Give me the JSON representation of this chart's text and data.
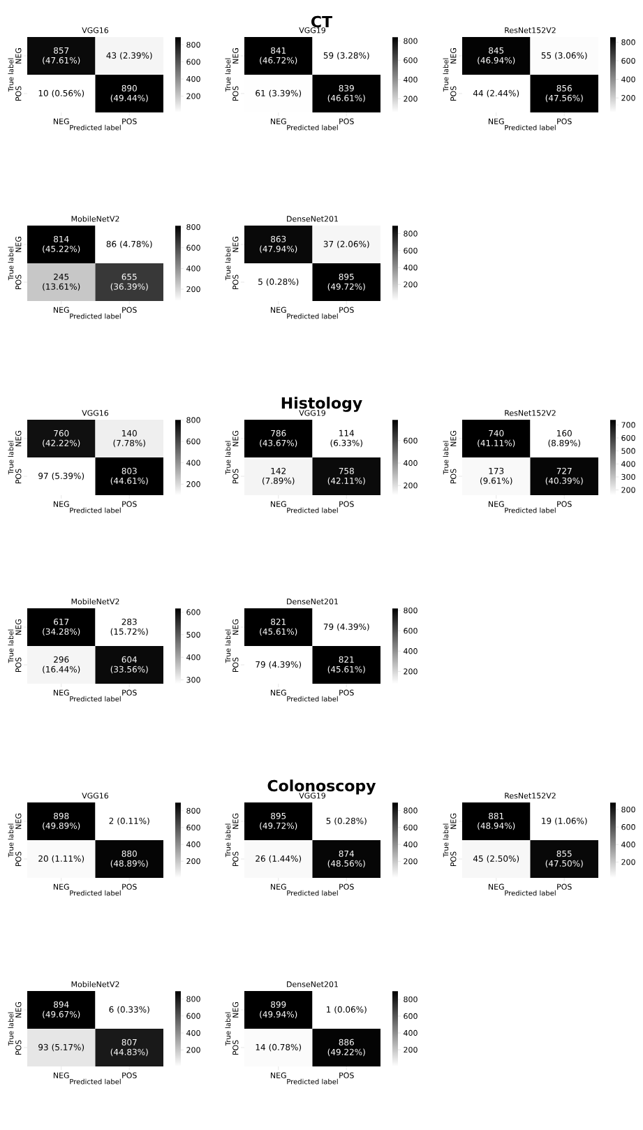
{
  "chart_data": [
    {
      "type": "other",
      "title": "CT"
    },
    {
      "type": "heatmap",
      "title": "VGG16",
      "xlabel": "Predicted label",
      "ylabel": "True label",
      "categories": [
        "NEG",
        "POS"
      ],
      "y_categories": [
        "NEG",
        "POS"
      ],
      "cells": [
        [
          857,
          43
        ],
        [
          10,
          890
        ]
      ],
      "cell_labels": [
        [
          "857 (47.61%)",
          "43 (2.39%)"
        ],
        [
          "10 (0.56%)",
          "890 (49.44%)"
        ]
      ],
      "clim": [
        10,
        890
      ],
      "cticks": [
        200,
        400,
        600,
        800
      ]
    },
    {
      "type": "heatmap",
      "title": "VGG19",
      "xlabel": "Predicted label",
      "ylabel": "True label",
      "categories": [
        "NEG",
        "POS"
      ],
      "y_categories": [
        "NEG",
        "POS"
      ],
      "cells": [
        [
          841,
          59
        ],
        [
          61,
          839
        ]
      ],
      "cell_labels": [
        [
          "841 (46.72%)",
          "59 (3.28%)"
        ],
        [
          "61 (3.39%)",
          "839 (46.61%)"
        ]
      ],
      "clim": [
        59,
        841
      ],
      "cticks": [
        200,
        400,
        600,
        800
      ]
    },
    {
      "type": "heatmap",
      "title": "ResNet152V2",
      "xlabel": "Predicted label",
      "ylabel": "True label",
      "categories": [
        "NEG",
        "POS"
      ],
      "y_categories": [
        "NEG",
        "POS"
      ],
      "cells": [
        [
          845,
          55
        ],
        [
          44,
          856
        ]
      ],
      "cell_labels": [
        [
          "845 (46.94%)",
          "55 (3.06%)"
        ],
        [
          "44 (2.44%)",
          "856 (47.56%)"
        ]
      ],
      "clim": [
        44,
        856
      ],
      "cticks": [
        200,
        400,
        600,
        800
      ]
    },
    {
      "type": "heatmap",
      "title": "MobileNetV2",
      "xlabel": "Predicted label",
      "ylabel": "True label",
      "categories": [
        "NEG",
        "POS"
      ],
      "y_categories": [
        "NEG",
        "POS"
      ],
      "cells": [
        [
          814,
          86
        ],
        [
          245,
          655
        ]
      ],
      "cell_labels": [
        [
          "814 (45.22%)",
          "86 (4.78%)"
        ],
        [
          "245 (13.61%)",
          "655 (36.39%)"
        ]
      ],
      "clim": [
        86,
        814
      ],
      "cticks": [
        200,
        400,
        600,
        800
      ]
    },
    {
      "type": "heatmap",
      "title": "DenseNet201",
      "xlabel": "Predicted label",
      "ylabel": "True label",
      "categories": [
        "NEG",
        "POS"
      ],
      "y_categories": [
        "NEG",
        "POS"
      ],
      "cells": [
        [
          863,
          37
        ],
        [
          5,
          895
        ]
      ],
      "cell_labels": [
        [
          "863 (47.94%)",
          "37 (2.06%)"
        ],
        [
          "5 (0.28%)",
          "895 (49.72%)"
        ]
      ],
      "clim": [
        5,
        895
      ],
      "cticks": [
        200,
        400,
        600,
        800
      ]
    },
    {
      "type": "other",
      "title": "Histology"
    },
    {
      "type": "heatmap",
      "title": "VGG16",
      "xlabel": "Predicted label",
      "ylabel": "True label",
      "categories": [
        "NEG",
        "POS"
      ],
      "y_categories": [
        "NEG",
        "POS"
      ],
      "cells": [
        [
          760,
          140
        ],
        [
          97,
          803
        ]
      ],
      "cell_labels": [
        [
          "760 (42.22%)",
          "140 (7.78%)"
        ],
        [
          "97 (5.39%)",
          "803 (44.61%)"
        ]
      ],
      "clim": [
        97,
        803
      ],
      "cticks": [
        200,
        400,
        600,
        800
      ]
    },
    {
      "type": "heatmap",
      "title": "VGG19",
      "xlabel": "Predicted label",
      "ylabel": "True label",
      "categories": [
        "NEG",
        "POS"
      ],
      "y_categories": [
        "NEG",
        "POS"
      ],
      "cells": [
        [
          786,
          114
        ],
        [
          142,
          758
        ]
      ],
      "cell_labels": [
        [
          "786 (43.67%)",
          "114 (6.33%)"
        ],
        [
          "142 (7.89%)",
          "758 (42.11%)"
        ]
      ],
      "clim": [
        114,
        786
      ],
      "cticks": [
        200,
        400,
        600
      ]
    },
    {
      "type": "heatmap",
      "title": "ResNet152V2",
      "xlabel": "Predicted label",
      "ylabel": "True label",
      "categories": [
        "NEG",
        "POS"
      ],
      "y_categories": [
        "NEG",
        "POS"
      ],
      "cells": [
        [
          740,
          160
        ],
        [
          173,
          727
        ]
      ],
      "cell_labels": [
        [
          "740 (41.11%)",
          "160 (8.89%)"
        ],
        [
          "173 (9.61%)",
          "727 (40.39%)"
        ]
      ],
      "clim": [
        160,
        740
      ],
      "cticks": [
        200,
        300,
        400,
        500,
        600,
        700
      ]
    },
    {
      "type": "heatmap",
      "title": "MobileNetV2",
      "xlabel": "Predicted label",
      "ylabel": "True label",
      "categories": [
        "NEG",
        "POS"
      ],
      "y_categories": [
        "NEG",
        "POS"
      ],
      "cells": [
        [
          617,
          283
        ],
        [
          296,
          604
        ]
      ],
      "cell_labels": [
        [
          "617 (34.28%)",
          "283 (15.72%)"
        ],
        [
          "296 (16.44%)",
          "604 (33.56%)"
        ]
      ],
      "clim": [
        283,
        617
      ],
      "cticks": [
        300,
        400,
        500,
        600
      ]
    },
    {
      "type": "heatmap",
      "title": "DenseNet201",
      "xlabel": "Predicted label",
      "ylabel": "True label",
      "categories": [
        "NEG",
        "POS"
      ],
      "y_categories": [
        "NEG",
        "POS"
      ],
      "cells": [
        [
          821,
          79
        ],
        [
          79,
          821
        ]
      ],
      "cell_labels": [
        [
          "821 (45.61%)",
          "79 (4.39%)"
        ],
        [
          "79 (4.39%)",
          "821 (45.61%)"
        ]
      ],
      "clim": [
        79,
        821
      ],
      "cticks": [
        200,
        400,
        600,
        800
      ]
    },
    {
      "type": "other",
      "title": "Colonoscopy"
    },
    {
      "type": "heatmap",
      "title": "VGG16",
      "xlabel": "Predicted label",
      "ylabel": "True label",
      "categories": [
        "NEG",
        "POS"
      ],
      "y_categories": [
        "NEG",
        "POS"
      ],
      "cells": [
        [
          898,
          2
        ],
        [
          20,
          880
        ]
      ],
      "cell_labels": [
        [
          "898 (49.89%)",
          "2 (0.11%)"
        ],
        [
          "20 (1.11%)",
          "880 (48.89%)"
        ]
      ],
      "clim": [
        2,
        898
      ],
      "cticks": [
        200,
        400,
        600,
        800
      ]
    },
    {
      "type": "heatmap",
      "title": "VGG19",
      "xlabel": "Predicted label",
      "ylabel": "True label",
      "categories": [
        "NEG",
        "POS"
      ],
      "y_categories": [
        "NEG",
        "POS"
      ],
      "cells": [
        [
          895,
          5
        ],
        [
          26,
          874
        ]
      ],
      "cell_labels": [
        [
          "895 (49.72%)",
          "5 (0.28%)"
        ],
        [
          "26 (1.44%)",
          "874 (48.56%)"
        ]
      ],
      "clim": [
        5,
        895
      ],
      "cticks": [
        200,
        400,
        600,
        800
      ]
    },
    {
      "type": "heatmap",
      "title": "ResNet152V2",
      "xlabel": "Predicted label",
      "ylabel": "True label",
      "categories": [
        "NEG",
        "POS"
      ],
      "y_categories": [
        "NEG",
        "POS"
      ],
      "cells": [
        [
          881,
          19
        ],
        [
          45,
          855
        ]
      ],
      "cell_labels": [
        [
          "881 (48.94%)",
          "19 (1.06%)"
        ],
        [
          "45 (2.50%)",
          "855 (47.50%)"
        ]
      ],
      "clim": [
        19,
        881
      ],
      "cticks": [
        200,
        400,
        600,
        800
      ]
    },
    {
      "type": "heatmap",
      "title": "MobileNetV2",
      "xlabel": "Predicted label",
      "ylabel": "True label",
      "categories": [
        "NEG",
        "POS"
      ],
      "y_categories": [
        "NEG",
        "POS"
      ],
      "cells": [
        [
          894,
          6
        ],
        [
          93,
          807
        ]
      ],
      "cell_labels": [
        [
          "894 (49.67%)",
          "6 (0.33%)"
        ],
        [
          "93 (5.17%)",
          "807 (44.83%)"
        ]
      ],
      "clim": [
        6,
        894
      ],
      "cticks": [
        200,
        400,
        600,
        800
      ]
    },
    {
      "type": "heatmap",
      "title": "DenseNet201",
      "xlabel": "Predicted label",
      "ylabel": "True label",
      "categories": [
        "NEG",
        "POS"
      ],
      "y_categories": [
        "NEG",
        "POS"
      ],
      "cells": [
        [
          899,
          1
        ],
        [
          14,
          886
        ]
      ],
      "cell_labels": [
        [
          "899 (49.94%)",
          "1 (0.06%)"
        ],
        [
          "14 (0.78%)",
          "886 (49.22%)"
        ]
      ],
      "clim": [
        1,
        899
      ],
      "cticks": [
        200,
        400,
        600,
        800
      ]
    }
  ]
}
